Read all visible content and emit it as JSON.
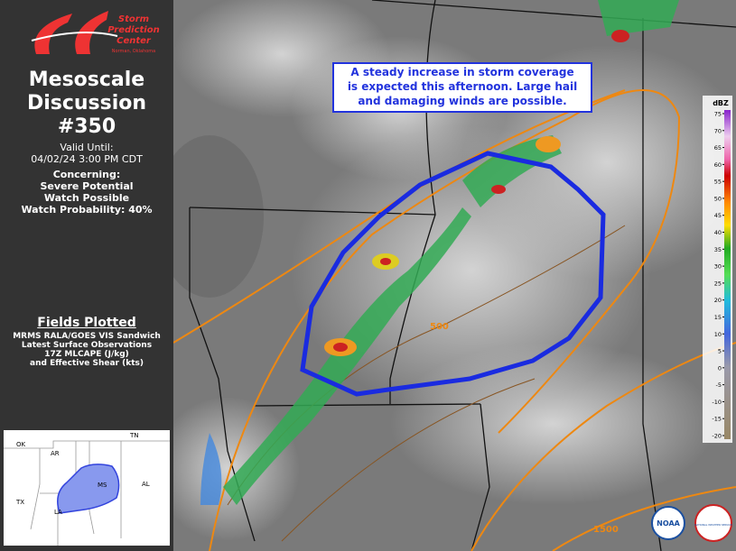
{
  "sidebar": {
    "logo": {
      "lines": [
        "Storm",
        "Prediction",
        "Center"
      ],
      "location": "Norman, Oklahoma"
    },
    "title_lines": [
      "Mesoscale",
      "Discussion",
      "#350"
    ],
    "valid_label": "Valid Until:",
    "valid_time": "04/02/24 3:00 PM CDT",
    "concerning_label": "Concerning:",
    "concerning": [
      "Severe Potential",
      "Watch Possible"
    ],
    "watch_probability": "Watch Probability: 40%",
    "fields_title": "Fields Plotted",
    "fields": [
      "MRMS RALA/GOES VIS Sandwich",
      "Latest Surface Observations",
      "17Z MLCAPE (J/kg)",
      "and Effective Shear (kts)"
    ]
  },
  "inset": {
    "states": [
      "OK",
      "AR",
      "TN",
      "TX",
      "MS",
      "AL",
      "LA"
    ]
  },
  "map": {
    "callout": [
      "A steady increase in storm coverage",
      "is expected this afternoon. Large hail",
      "and damaging winds are possible."
    ],
    "contour_labels": [
      "500",
      "1500"
    ],
    "colorbar": {
      "unit": "dBZ",
      "ticks": [
        75,
        70,
        65,
        60,
        55,
        50,
        45,
        40,
        35,
        30,
        25,
        20,
        15,
        10,
        5,
        0,
        -5,
        -10,
        -15,
        -20
      ]
    },
    "logos": [
      "NOAA",
      "NATIONAL WEATHER SERVICE"
    ]
  }
}
